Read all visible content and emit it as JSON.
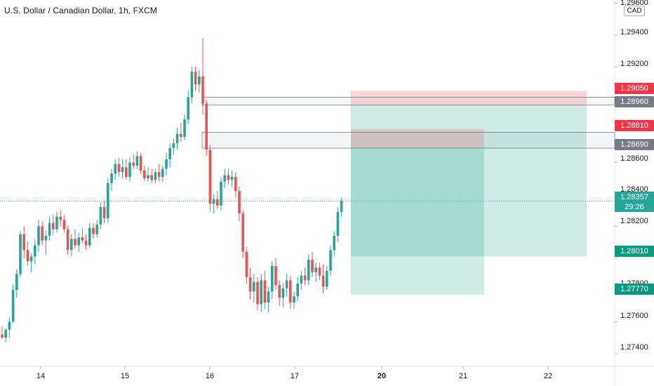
{
  "header": {
    "title": "U.S. Dollar / Canadian Dollar, 1h, FXCM",
    "currency_badge": "CAD"
  },
  "chart_data": {
    "type": "candlestick",
    "symbol": "USDCAD",
    "interval": "1h",
    "source": "FXCM",
    "ylim": [
      1.2732,
      1.2962
    ],
    "x_tick_labels": [
      "14",
      "15",
      "16",
      "17",
      "20",
      "21",
      "22"
    ],
    "y_tick_labels": [
      "1.29600",
      "1.29400",
      "1.29200",
      "1.28600",
      "1.28400",
      "1.28200",
      "1.27800",
      "1.27600",
      "1.27400"
    ],
    "current_price": "1.28357",
    "countdown": "29:26",
    "price_tags": [
      {
        "label": "1.29050",
        "price": 1.2905,
        "color": "#f23645"
      },
      {
        "label": "1.28960",
        "price": 1.2896,
        "color": "#787b86"
      },
      {
        "label": "1.28810",
        "price": 1.2881,
        "color": "#f23645"
      },
      {
        "label": "1.28690",
        "price": 1.2869,
        "color": "#787b86"
      },
      {
        "label": "1.28357",
        "price": 1.28357,
        "color": "#26a69a"
      },
      {
        "label": "1.28010",
        "price": 1.2801,
        "color": "#089981"
      },
      {
        "label": "1.27770",
        "price": 1.2777,
        "color": "#089981"
      }
    ],
    "zones": [
      {
        "name": "resistance-zone-upper",
        "from": 1.2896,
        "to": 1.2901
      },
      {
        "name": "resistance-zone-lower",
        "from": 1.2869,
        "to": 1.2879
      }
    ],
    "positions": [
      {
        "name": "short-position-long-range",
        "entry": 1.2896,
        "stop": 1.2905,
        "target": 1.2801
      },
      {
        "name": "short-position-short-range",
        "entry": 1.2869,
        "stop": 1.2881,
        "target": 1.2777
      }
    ],
    "candles": [
      [
        1.2752,
        1.2757,
        1.2749,
        1.275
      ],
      [
        1.275,
        1.2756,
        1.2747,
        1.2755
      ],
      [
        1.2755,
        1.2763,
        1.275,
        1.276
      ],
      [
        1.276,
        1.2783,
        1.2759,
        1.278
      ],
      [
        1.278,
        1.2793,
        1.2775,
        1.279
      ],
      [
        1.279,
        1.2817,
        1.2788,
        1.2815
      ],
      [
        1.2815,
        1.282,
        1.28,
        1.2805
      ],
      [
        1.2805,
        1.281,
        1.2795,
        1.2798
      ],
      [
        1.2798,
        1.2803,
        1.2791,
        1.2801
      ],
      [
        1.2801,
        1.2812,
        1.2796,
        1.2808
      ],
      [
        1.2808,
        1.2824,
        1.2804,
        1.282
      ],
      [
        1.282,
        1.2823,
        1.2808,
        1.2811
      ],
      [
        1.2811,
        1.2817,
        1.2802,
        1.2814
      ],
      [
        1.2814,
        1.2826,
        1.2811,
        1.2822
      ],
      [
        1.2822,
        1.2827,
        1.2815,
        1.2818
      ],
      [
        1.2818,
        1.2829,
        1.2816,
        1.2826
      ],
      [
        1.2826,
        1.283,
        1.282,
        1.2824
      ],
      [
        1.2824,
        1.2827,
        1.2816,
        1.2818
      ],
      [
        1.2818,
        1.282,
        1.2802,
        1.2805
      ],
      [
        1.2805,
        1.2815,
        1.2801,
        1.2812
      ],
      [
        1.2812,
        1.2818,
        1.2806,
        1.2808
      ],
      [
        1.2808,
        1.2816,
        1.2804,
        1.2813
      ],
      [
        1.2813,
        1.2819,
        1.2809,
        1.2811
      ],
      [
        1.2811,
        1.2815,
        1.2805,
        1.2808
      ],
      [
        1.2808,
        1.2822,
        1.2806,
        1.2819
      ],
      [
        1.2819,
        1.2822,
        1.2812,
        1.2815
      ],
      [
        1.2815,
        1.2824,
        1.2813,
        1.2821
      ],
      [
        1.2821,
        1.2835,
        1.2818,
        1.2832
      ],
      [
        1.2832,
        1.2836,
        1.2822,
        1.2825
      ],
      [
        1.2825,
        1.285,
        1.2822,
        1.2847
      ],
      [
        1.2847,
        1.2856,
        1.2842,
        1.2853
      ],
      [
        1.2853,
        1.2862,
        1.2849,
        1.2859
      ],
      [
        1.2859,
        1.2863,
        1.2851,
        1.2854
      ],
      [
        1.2854,
        1.2862,
        1.285,
        1.2857
      ],
      [
        1.2857,
        1.2862,
        1.2849,
        1.2851
      ],
      [
        1.2851,
        1.2863,
        1.2848,
        1.286
      ],
      [
        1.286,
        1.2865,
        1.2856,
        1.2858
      ],
      [
        1.2858,
        1.2867,
        1.2856,
        1.2864
      ],
      [
        1.2864,
        1.2866,
        1.2853,
        1.2855
      ],
      [
        1.2855,
        1.2858,
        1.2848,
        1.285
      ],
      [
        1.285,
        1.2857,
        1.2848,
        1.2852
      ],
      [
        1.2852,
        1.2856,
        1.2847,
        1.2849
      ],
      [
        1.2849,
        1.2856,
        1.2847,
        1.2854
      ],
      [
        1.2854,
        1.2859,
        1.2848,
        1.2851
      ],
      [
        1.2851,
        1.2858,
        1.2848,
        1.2856
      ],
      [
        1.2856,
        1.2866,
        1.2852,
        1.2862
      ],
      [
        1.2862,
        1.2872,
        1.2857,
        1.2869
      ],
      [
        1.2869,
        1.2875,
        1.2865,
        1.2872
      ],
      [
        1.2872,
        1.2882,
        1.2868,
        1.2878
      ],
      [
        1.2878,
        1.2885,
        1.2873,
        1.2876
      ],
      [
        1.2876,
        1.289,
        1.2874,
        1.2887
      ],
      [
        1.2887,
        1.2905,
        1.2884,
        1.2901
      ],
      [
        1.2901,
        1.292,
        1.2897,
        1.2917
      ],
      [
        1.2917,
        1.292,
        1.2905,
        1.2909
      ],
      [
        1.2909,
        1.2918,
        1.2904,
        1.2914
      ],
      [
        1.2914,
        1.2938,
        1.289,
        1.2897
      ],
      [
        1.2897,
        1.2899,
        1.2864,
        1.2868
      ],
      [
        1.2868,
        1.2871,
        1.2829,
        1.2834
      ],
      [
        1.2834,
        1.284,
        1.2828,
        1.2837
      ],
      [
        1.2837,
        1.2842,
        1.2831,
        1.2833
      ],
      [
        1.2833,
        1.2851,
        1.283,
        1.2848
      ],
      [
        1.2848,
        1.2856,
        1.2844,
        1.2852
      ],
      [
        1.2852,
        1.2856,
        1.2846,
        1.2849
      ],
      [
        1.2849,
        1.2855,
        1.2845,
        1.2851
      ],
      [
        1.2851,
        1.2854,
        1.2838,
        1.2842
      ],
      [
        1.2842,
        1.2845,
        1.2823,
        1.2828
      ],
      [
        1.2828,
        1.283,
        1.28,
        1.2804
      ],
      [
        1.2804,
        1.2807,
        1.2784,
        1.2788
      ],
      [
        1.2788,
        1.2794,
        1.2774,
        1.2779
      ],
      [
        1.2779,
        1.279,
        1.2772,
        1.2785
      ],
      [
        1.2785,
        1.2788,
        1.2767,
        1.2771
      ],
      [
        1.2771,
        1.279,
        1.2766,
        1.2786
      ],
      [
        1.2786,
        1.2792,
        1.2768,
        1.2772
      ],
      [
        1.2772,
        1.2782,
        1.2766,
        1.2779
      ],
      [
        1.2779,
        1.2798,
        1.2774,
        1.2795
      ],
      [
        1.2795,
        1.28,
        1.278,
        1.2783
      ],
      [
        1.2783,
        1.2786,
        1.277,
        1.2775
      ],
      [
        1.2775,
        1.2784,
        1.2769,
        1.2781
      ],
      [
        1.2781,
        1.279,
        1.2776,
        1.2786
      ],
      [
        1.2786,
        1.2789,
        1.2768,
        1.2772
      ],
      [
        1.2772,
        1.2779,
        1.2768,
        1.2776
      ],
      [
        1.2776,
        1.2788,
        1.2773,
        1.2784
      ],
      [
        1.2784,
        1.2792,
        1.278,
        1.2789
      ],
      [
        1.2789,
        1.2794,
        1.2783,
        1.2786
      ],
      [
        1.2786,
        1.2802,
        1.2783,
        1.2799
      ],
      [
        1.2799,
        1.2804,
        1.2788,
        1.2791
      ],
      [
        1.2791,
        1.2797,
        1.2785,
        1.2794
      ],
      [
        1.2794,
        1.2797,
        1.2786,
        1.2789
      ],
      [
        1.2789,
        1.2796,
        1.2778,
        1.2782
      ],
      [
        1.2782,
        1.2795,
        1.278,
        1.2792
      ],
      [
        1.2792,
        1.2808,
        1.2789,
        1.2805
      ],
      [
        1.2805,
        1.2817,
        1.2801,
        1.2814
      ],
      [
        1.2814,
        1.2832,
        1.281,
        1.2829
      ],
      [
        1.2829,
        1.2838,
        1.2826,
        1.2836
      ]
    ]
  }
}
